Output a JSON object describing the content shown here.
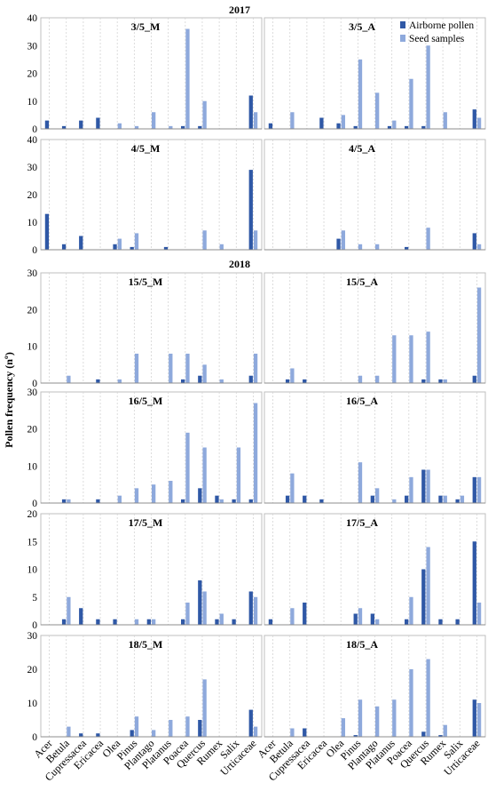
{
  "chart_data": {
    "type": "bar",
    "ylabel": "Pollen frequency (nº)",
    "year_labels": [
      "2017",
      "2018"
    ],
    "categories": [
      "Acer",
      "Betula",
      "Cupressacea",
      "Ericacea",
      "Olea",
      "Pinus",
      "Plantago",
      "Platanus",
      "Poacea",
      "Quercus",
      "Rumex",
      "Salix",
      "Urticaceae"
    ],
    "series_names": [
      "Airborne pollen",
      "Seed samples"
    ],
    "colors": {
      "airborne": "#2f58a6",
      "seed": "#8ea9dc"
    },
    "grid": "vertical-dashed",
    "legend": "top-right",
    "panels": [
      {
        "title": "3/5_M",
        "ylim": [
          0,
          40
        ],
        "ticks": [
          0,
          10,
          20,
          30,
          40
        ],
        "airborne": [
          3,
          1,
          3,
          4,
          0,
          0,
          0,
          0,
          1,
          1,
          0,
          0,
          12
        ],
        "seed": [
          0,
          0,
          0,
          0,
          2,
          1,
          6,
          1,
          36,
          10,
          0,
          0,
          6
        ]
      },
      {
        "title": "3/5_A",
        "ylim": [
          0,
          40
        ],
        "ticks": [
          0,
          10,
          20,
          30,
          40
        ],
        "airborne": [
          2,
          0,
          0,
          4,
          2,
          1,
          0,
          1,
          1,
          1,
          0,
          0,
          7
        ],
        "seed": [
          0,
          6,
          0,
          0,
          5,
          25,
          13,
          3,
          18,
          30,
          6,
          0,
          4
        ]
      },
      {
        "title": "4/5_M",
        "ylim": [
          0,
          40
        ],
        "ticks": [
          0,
          10,
          20,
          30,
          40
        ],
        "airborne": [
          13,
          2,
          5,
          0,
          2,
          1,
          0,
          1,
          0,
          0,
          0,
          0,
          29
        ],
        "seed": [
          0,
          0,
          0,
          0,
          4,
          6,
          0,
          0,
          0,
          7,
          2,
          0,
          7
        ]
      },
      {
        "title": "4/5_A",
        "ylim": [
          0,
          40
        ],
        "ticks": [
          0,
          10,
          20,
          30,
          40
        ],
        "airborne": [
          0,
          0,
          0,
          0,
          4,
          0,
          0,
          0,
          1,
          0,
          0,
          0,
          6
        ],
        "seed": [
          0,
          0,
          0,
          0,
          7,
          2,
          2,
          0,
          0,
          8,
          0,
          0,
          2
        ]
      },
      {
        "title": "15/5_M",
        "ylim": [
          0,
          30
        ],
        "ticks": [
          0,
          10,
          20,
          30
        ],
        "airborne": [
          0,
          0,
          0,
          1,
          0,
          0,
          0,
          0,
          1,
          2,
          0,
          0,
          2
        ],
        "seed": [
          0,
          2,
          0,
          0,
          1,
          8,
          0,
          8,
          8,
          5,
          1,
          0,
          8
        ]
      },
      {
        "title": "15/5_A",
        "ylim": [
          0,
          30
        ],
        "ticks": [
          0,
          10,
          20,
          30
        ],
        "airborne": [
          0,
          1,
          1,
          0,
          0,
          0,
          0,
          0,
          0,
          1,
          1,
          0,
          2
        ],
        "seed": [
          0,
          4,
          0,
          0,
          0,
          2,
          2,
          13,
          13,
          14,
          1,
          0,
          26
        ]
      },
      {
        "title": "16/5_M",
        "ylim": [
          0,
          30
        ],
        "ticks": [
          0,
          10,
          20,
          30
        ],
        "airborne": [
          0,
          1,
          0,
          1,
          0,
          0,
          0,
          0,
          1,
          4,
          2,
          1,
          1
        ],
        "seed": [
          0,
          1,
          0,
          0,
          2,
          4,
          5,
          6,
          19,
          15,
          1,
          15,
          27
        ]
      },
      {
        "title": "16/5_A",
        "ylim": [
          0,
          30
        ],
        "ticks": [
          0,
          10,
          20,
          30
        ],
        "airborne": [
          0,
          2,
          2,
          1,
          0,
          0,
          2,
          0,
          2,
          9,
          2,
          1,
          7
        ],
        "seed": [
          0,
          8,
          0,
          0,
          0,
          11,
          4,
          1,
          7,
          9,
          2,
          2,
          7
        ]
      },
      {
        "title": "17/5_M",
        "ylim": [
          0,
          20
        ],
        "ticks": [
          0,
          5,
          10,
          15,
          20
        ],
        "airborne": [
          0,
          1,
          3,
          1,
          1,
          0,
          1,
          0,
          1,
          8,
          1,
          1,
          6
        ],
        "seed": [
          0,
          5,
          0,
          0,
          0,
          1,
          1,
          0,
          4,
          6,
          2,
          0,
          5
        ]
      },
      {
        "title": "17/5_A",
        "ylim": [
          0,
          20
        ],
        "ticks": [
          0,
          5,
          10,
          15,
          20
        ],
        "airborne": [
          1,
          0,
          4,
          0,
          0,
          2,
          2,
          0,
          1,
          10,
          1,
          1,
          15
        ],
        "seed": [
          0,
          3,
          0,
          0,
          0,
          3,
          1,
          0,
          5,
          14,
          0,
          0,
          4
        ]
      },
      {
        "title": "18/5_M",
        "ylim": [
          0,
          30
        ],
        "ticks": [
          0,
          10,
          20,
          30
        ],
        "airborne": [
          0,
          0,
          1,
          1,
          0,
          2,
          0,
          0,
          0,
          5,
          0,
          0,
          8
        ],
        "seed": [
          0,
          3,
          0,
          0,
          0,
          6,
          2,
          5,
          6,
          17,
          0,
          0,
          3
        ]
      },
      {
        "title": "18/5_A",
        "ylim": [
          0,
          30
        ],
        "ticks": [
          0,
          10,
          20,
          30
        ],
        "airborne": [
          0,
          0,
          2.5,
          0,
          0,
          0.5,
          0,
          0,
          0,
          1.5,
          0.5,
          0,
          11
        ],
        "seed": [
          0,
          2.5,
          0,
          0,
          5.5,
          11,
          9,
          11,
          20,
          23,
          3.5,
          0,
          10
        ]
      }
    ]
  }
}
